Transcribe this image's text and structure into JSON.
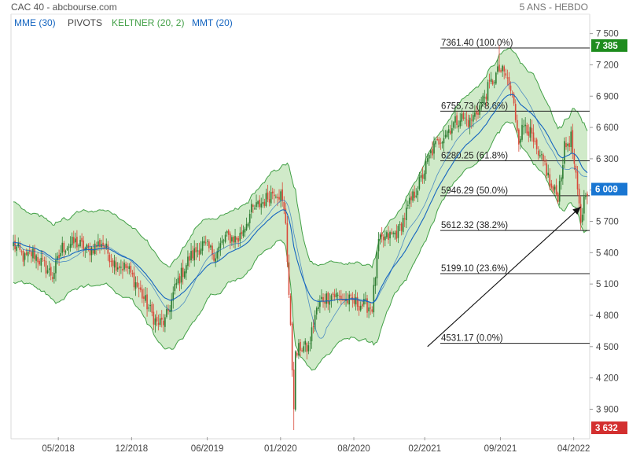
{
  "header": {
    "title": "CAC 40 - abcbourse.com",
    "period": "5 ANS - HEBDO"
  },
  "legend": [
    {
      "label": "MME (30)",
      "color": "#1565c0"
    },
    {
      "label": "PIVOTS",
      "color": "#444444"
    },
    {
      "label": "KELTNER (20, 2)",
      "color": "#43a047"
    },
    {
      "label": "MMT (20)",
      "color": "#1565c0"
    }
  ],
  "colors": {
    "up": "#2e7d32",
    "down": "#d84a3a",
    "band_fill": "#c8e6c0",
    "band_line": "#43a047",
    "ma": "#1565c0",
    "last_badge": "#1e8c1e",
    "low_badge": "#d32f2f",
    "ref_badge": "#1976d2"
  },
  "chart_data": {
    "type": "candlestick",
    "title": "CAC 40 - abcbourse.com",
    "xlabel": "",
    "ylabel": "",
    "ylim": [
      3632,
      7550
    ],
    "x_ticks": [
      "05/2018",
      "12/2018",
      "06/2019",
      "01/2020",
      "08/2020",
      "02/2021",
      "09/2021",
      "04/2022"
    ],
    "y_ticks": [
      3900,
      4200,
      4500,
      4800,
      5100,
      5400,
      5700,
      6000,
      6300,
      6600,
      6900,
      7200,
      7500
    ],
    "y_tick_labels": [
      "3 900",
      "4 200",
      "4 500",
      "4 800",
      "5 100",
      "5 400",
      "5 700",
      "6 000",
      "6 300",
      "6 600",
      "6 900",
      "7 200",
      "7 500"
    ],
    "last_value": {
      "value": 7385,
      "label": "7 385"
    },
    "low_value": {
      "value": 3632,
      "label": "3 632"
    },
    "ref_value": {
      "value": 6009,
      "label": "6 009"
    },
    "fibonacci": [
      {
        "value": 7361.4,
        "label": "7361.40  (100.0%)"
      },
      {
        "value": 6755.73,
        "label": "6755.73  (78.6%)"
      },
      {
        "value": 6280.25,
        "label": "6280.25  (61.8%)"
      },
      {
        "value": 5946.29,
        "label": "5946.29  (50.0%)"
      },
      {
        "value": 5612.32,
        "label": "5612.32  (38.2%)"
      },
      {
        "value": 5199.1,
        "label": "5199.10  (23.6%)"
      },
      {
        "value": 4531.17,
        "label": "4531.17  (0.0%)"
      }
    ],
    "trend_arrow": {
      "from_week": 254,
      "from_value": 4500,
      "to_week": 348,
      "to_value": 5840
    },
    "anchors": [
      {
        "week": 0,
        "value": 5480
      },
      {
        "week": 7,
        "value": 5340
      },
      {
        "week": 12,
        "value": 5400
      },
      {
        "week": 17,
        "value": 5310
      },
      {
        "week": 24,
        "value": 5180
      },
      {
        "week": 30,
        "value": 5450
      },
      {
        "week": 38,
        "value": 5500
      },
      {
        "week": 46,
        "value": 5420
      },
      {
        "week": 54,
        "value": 5500
      },
      {
        "week": 62,
        "value": 5300
      },
      {
        "week": 70,
        "value": 5250
      },
      {
        "week": 76,
        "value": 5080
      },
      {
        "week": 82,
        "value": 4900
      },
      {
        "week": 88,
        "value": 4720
      },
      {
        "week": 93,
        "value": 4740
      },
      {
        "week": 100,
        "value": 5100
      },
      {
        "week": 108,
        "value": 5350
      },
      {
        "week": 116,
        "value": 5480
      },
      {
        "week": 124,
        "value": 5380
      },
      {
        "week": 130,
        "value": 5550
      },
      {
        "week": 138,
        "value": 5530
      },
      {
        "week": 146,
        "value": 5800
      },
      {
        "week": 154,
        "value": 5900
      },
      {
        "week": 160,
        "value": 6000
      },
      {
        "week": 164,
        "value": 5950
      },
      {
        "week": 167,
        "value": 5700
      },
      {
        "week": 169,
        "value": 5000
      },
      {
        "week": 171,
        "value": 4300
      },
      {
        "week": 173,
        "value": 4400
      },
      {
        "week": 176,
        "value": 4500
      },
      {
        "week": 181,
        "value": 4480
      },
      {
        "week": 185,
        "value": 4800
      },
      {
        "week": 189,
        "value": 4950
      },
      {
        "week": 196,
        "value": 5000
      },
      {
        "week": 203,
        "value": 4950
      },
      {
        "week": 208,
        "value": 4930
      },
      {
        "week": 214,
        "value": 4900
      },
      {
        "week": 220,
        "value": 4880
      },
      {
        "week": 224,
        "value": 5500
      },
      {
        "week": 230,
        "value": 5550
      },
      {
        "week": 236,
        "value": 5600
      },
      {
        "week": 244,
        "value": 5900
      },
      {
        "week": 250,
        "value": 6100
      },
      {
        "week": 256,
        "value": 6350
      },
      {
        "week": 262,
        "value": 6500
      },
      {
        "week": 268,
        "value": 6600
      },
      {
        "week": 274,
        "value": 6700
      },
      {
        "week": 280,
        "value": 6650
      },
      {
        "week": 286,
        "value": 6800
      },
      {
        "week": 292,
        "value": 7000
      },
      {
        "week": 298,
        "value": 7150
      },
      {
        "week": 302,
        "value": 7100
      },
      {
        "week": 306,
        "value": 6900
      },
      {
        "week": 310,
        "value": 6500
      },
      {
        "week": 314,
        "value": 6650
      },
      {
        "week": 318,
        "value": 6500
      },
      {
        "week": 322,
        "value": 6300
      },
      {
        "week": 326,
        "value": 6250
      },
      {
        "week": 330,
        "value": 6000
      },
      {
        "week": 334,
        "value": 5950
      },
      {
        "week": 338,
        "value": 6400
      },
      {
        "week": 342,
        "value": 6500
      },
      {
        "week": 345,
        "value": 6100
      },
      {
        "week": 348,
        "value": 5700
      },
      {
        "week": 351,
        "value": 6009
      }
    ]
  }
}
